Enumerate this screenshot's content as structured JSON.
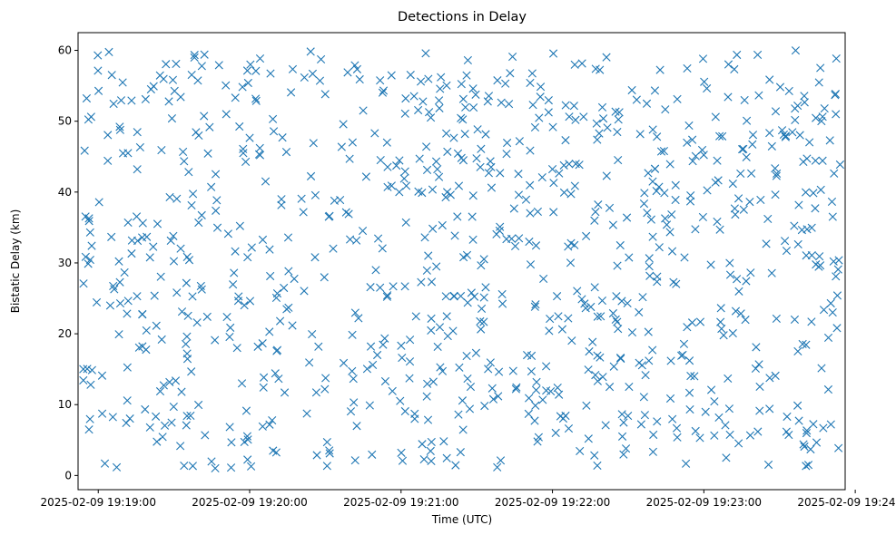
{
  "chart_data": {
    "type": "scatter",
    "title": "Detections in Delay",
    "xlabel": "Time (UTC)",
    "ylabel": "Bistatic Delay (km)",
    "marker": "x",
    "color": "#1f77b4",
    "grid": false,
    "legend": "none",
    "x_range": [
      "2025-02-09 19:18:52",
      "2025-02-09 19:23:56"
    ],
    "ylim": [
      -2.0,
      62.5
    ],
    "x_ticks": [
      "2025-02-09 19:19:00",
      "2025-02-09 19:20:00",
      "2025-02-09 19:21:00",
      "2025-02-09 19:22:00",
      "2025-02-09 19:23:00",
      "2025-02-09 19:24:00"
    ],
    "y_ticks": [
      0,
      10,
      20,
      30,
      40,
      50,
      60
    ],
    "x_start": "2025-02-09 19:18:54",
    "x_end": "2025-02-09 19:23:54",
    "n_points": 900,
    "point_seed": 20250209
  }
}
